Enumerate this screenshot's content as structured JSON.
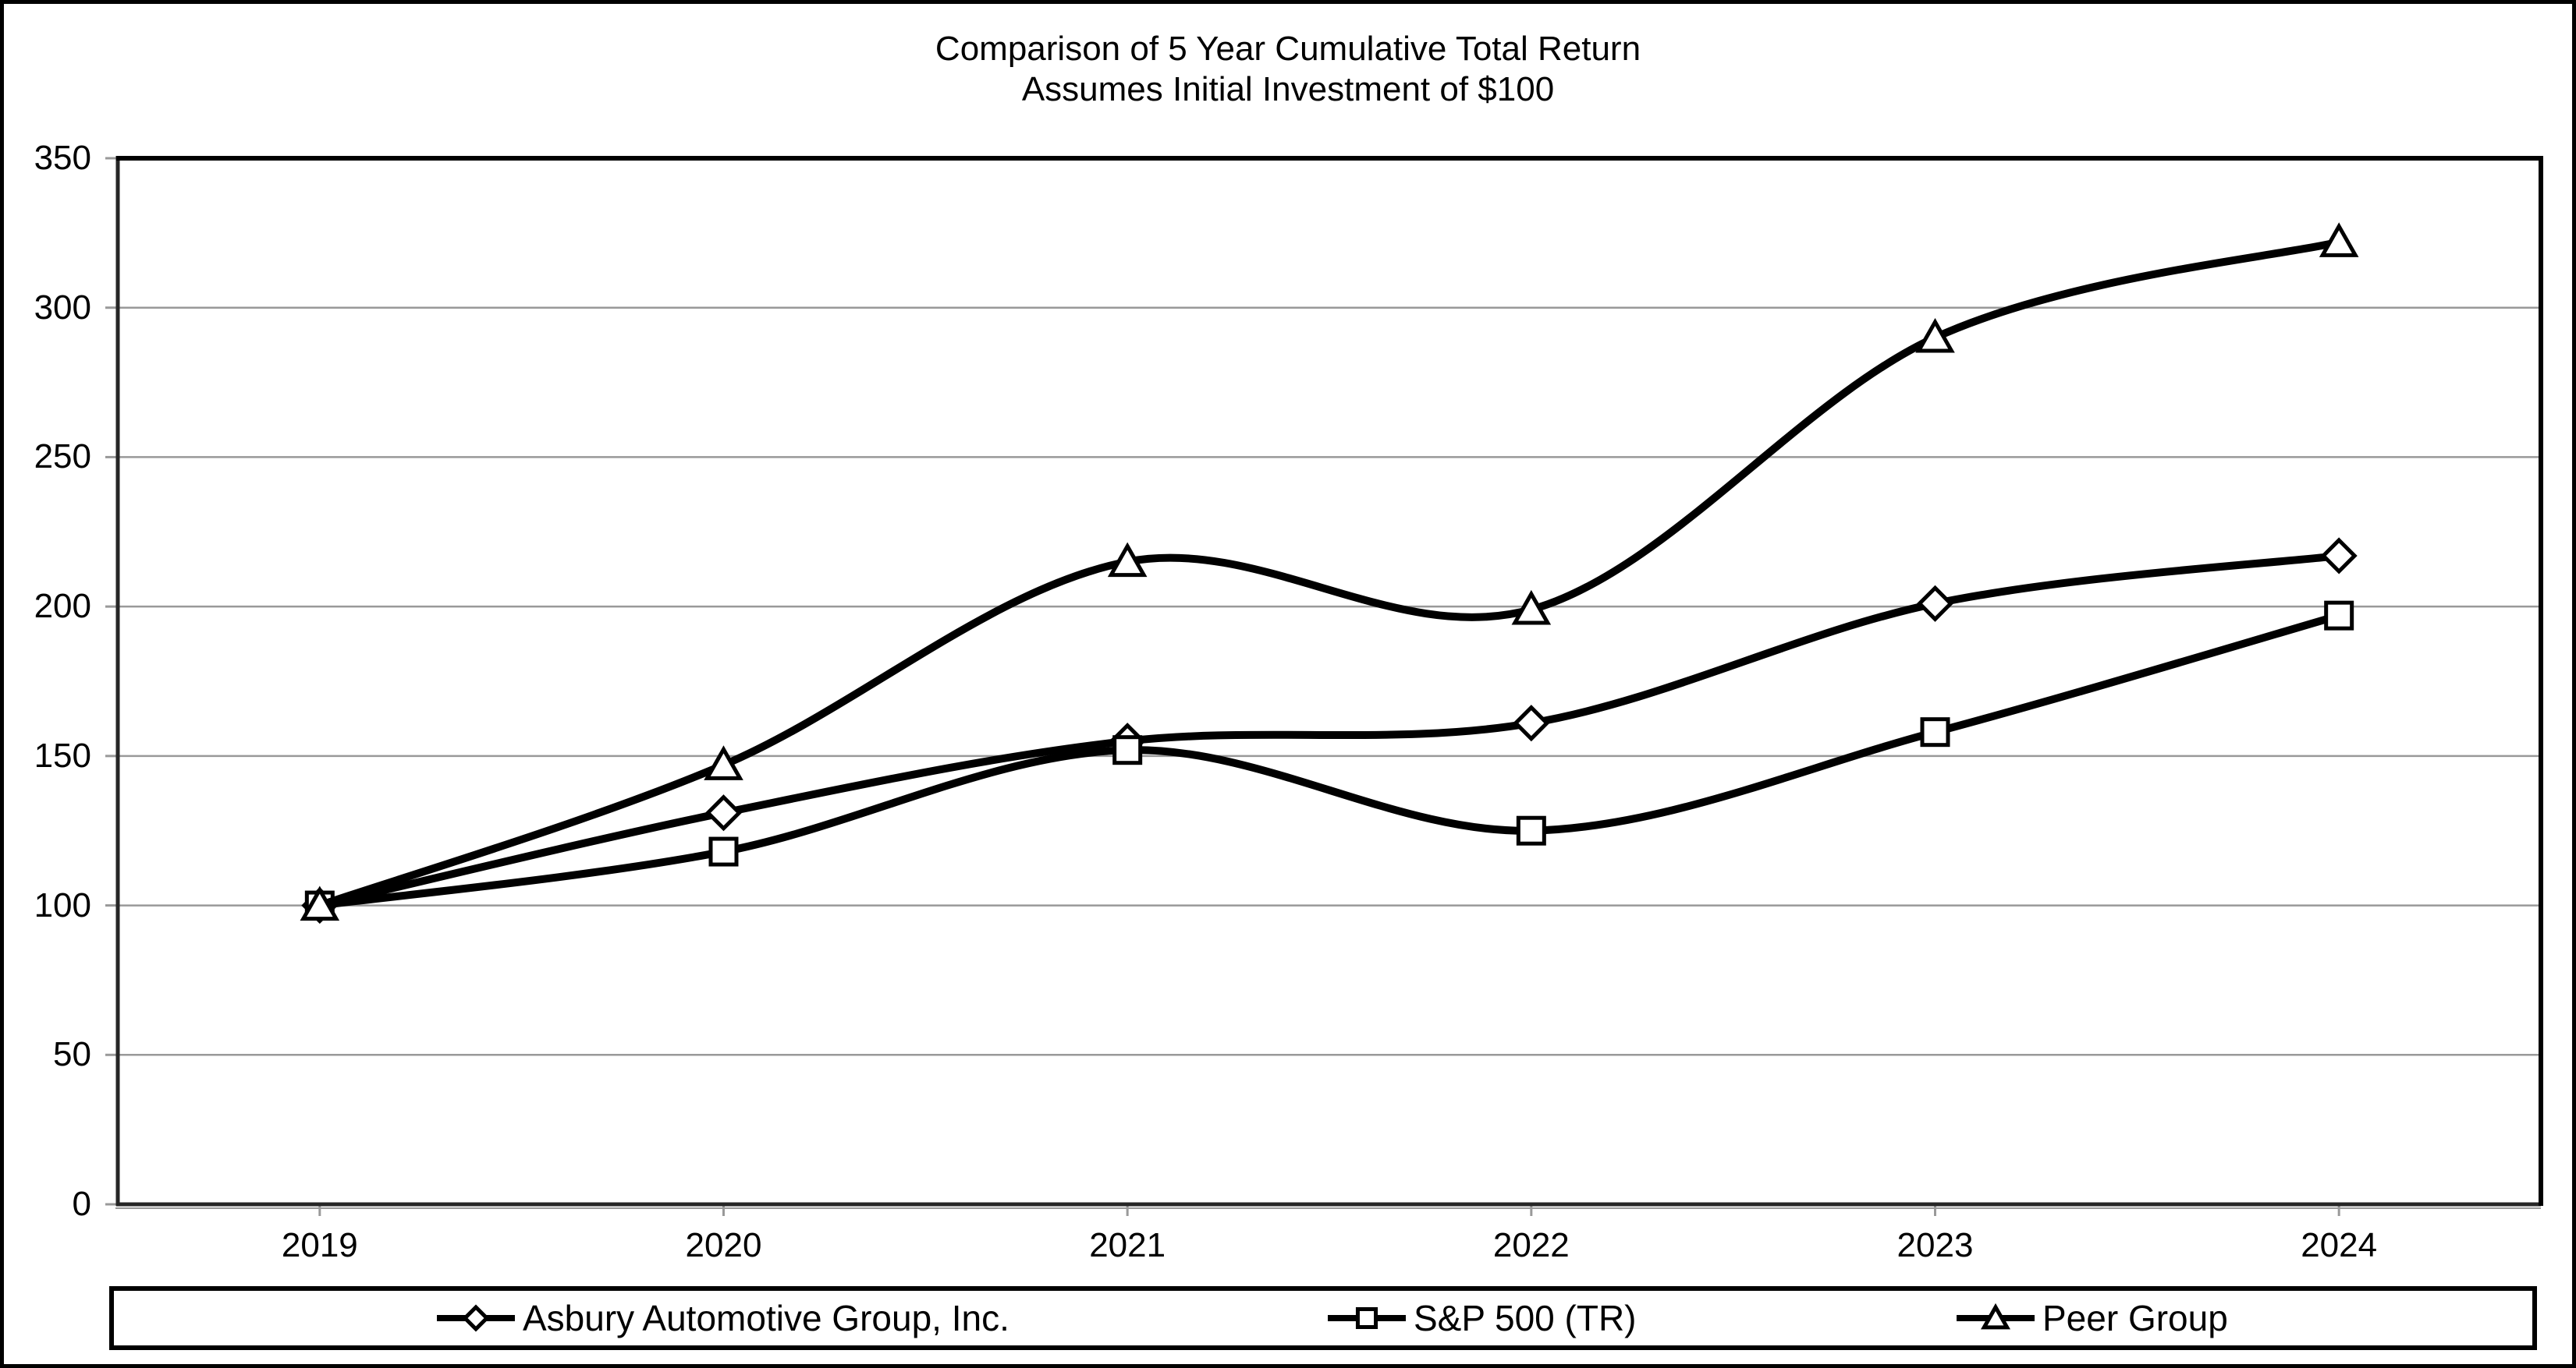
{
  "chart_data": {
    "type": "line",
    "title": "Comparison of 5 Year Cumulative Total Return",
    "subtitle": "Assumes Initial Investment of $100",
    "categories": [
      "2019",
      "2020",
      "2021",
      "2022",
      "2023",
      "2024"
    ],
    "series": [
      {
        "name": "Asbury Automotive Group, Inc.",
        "marker": "diamond",
        "values": [
          100,
          131,
          155,
          161,
          201,
          217
        ]
      },
      {
        "name": "S&P 500 (TR)",
        "marker": "square",
        "values": [
          100,
          118,
          152,
          125,
          158,
          197
        ]
      },
      {
        "name": "Peer Group",
        "marker": "triangle",
        "values": [
          100,
          147,
          215,
          199,
          290,
          322
        ]
      }
    ],
    "ylim": [
      0,
      350
    ],
    "ytick_step": 50,
    "grid": true,
    "smoothed_lines": true,
    "legend_position": "bottom",
    "colors": {
      "line": "#000000",
      "gridline": "#999999",
      "axis": "#262626",
      "plot_border": "#000000",
      "marker_fill": "#ffffff",
      "text": "#000000",
      "background": "#ffffff",
      "outer_border": "#000000"
    }
  }
}
